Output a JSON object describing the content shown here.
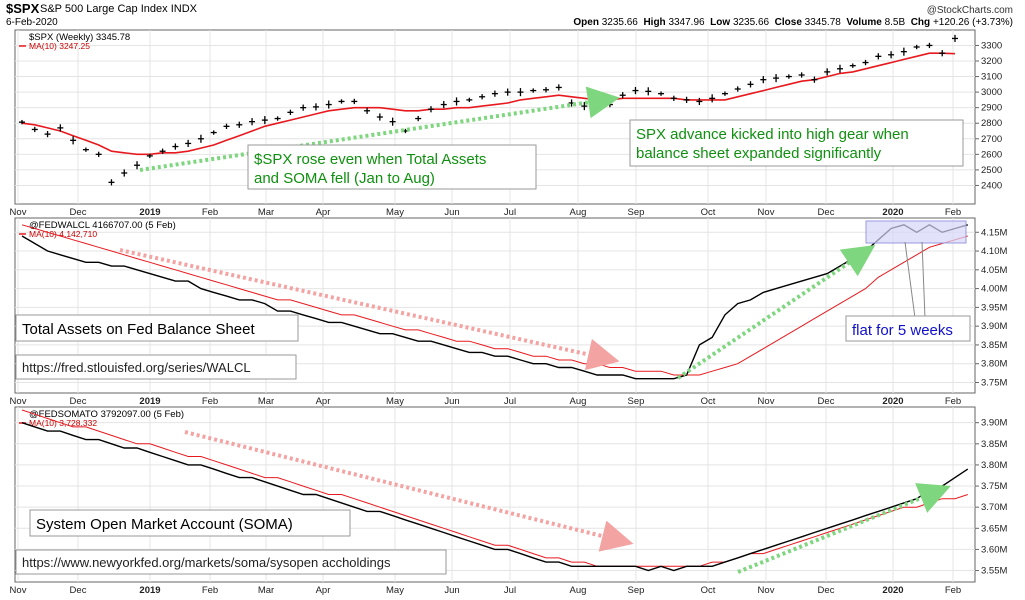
{
  "header": {
    "ticker": "$SPX",
    "name": "S&P 500 Large Cap Index",
    "exchange": "INDX",
    "date": "6-Feb-2020",
    "brand": "@StockCharts.com",
    "quote": [
      {
        "label": "Open",
        "value": "3235.66"
      },
      {
        "label": "High",
        "value": "3347.96"
      },
      {
        "label": "Low",
        "value": "3235.66"
      },
      {
        "label": "Close",
        "value": "3345.78"
      },
      {
        "label": "Volume",
        "value": "8.5B"
      },
      {
        "label": "Chg",
        "value": "+120.26 (+3.73%)"
      }
    ]
  },
  "colors": {
    "price": "#000000",
    "ma": "#e8191e",
    "ma_label": "#cc0000",
    "annotation_green": "#109010",
    "annotation_blue": "#1010cc",
    "arrow_green": "#7ed67e",
    "arrow_red": "#f4a3a3",
    "highlight": "#d6d6f8"
  },
  "x_axis": {
    "labels": [
      "Nov",
      "Dec",
      "2019",
      "Feb",
      "Mar",
      "Apr",
      "May",
      "Jun",
      "Jul",
      "Aug",
      "Sep",
      "Oct",
      "Nov",
      "Dec",
      "2020",
      "Feb"
    ],
    "bold": [
      "2019",
      "2020"
    ]
  },
  "chart_data": [
    {
      "type": "line",
      "panel": "price",
      "series_label": "$SPX (Weekly) 3345.78",
      "ma_label": "MA(10) 3247.25",
      "ylim": [
        2300,
        3380
      ],
      "yticks": [
        2400,
        2500,
        2600,
        2700,
        2800,
        2900,
        3000,
        3100,
        3200,
        3300
      ],
      "bar_style": "HLC",
      "series": [
        {
          "name": "$SPX (Weekly)",
          "values": [
            2807,
            2760,
            2730,
            2770,
            2690,
            2630,
            2600,
            2420,
            2480,
            2530,
            2590,
            2620,
            2650,
            2670,
            2700,
            2740,
            2780,
            2790,
            2810,
            2820,
            2830,
            2870,
            2900,
            2905,
            2920,
            2940,
            2940,
            2880,
            2840,
            2810,
            2750,
            2830,
            2890,
            2920,
            2940,
            2950,
            2970,
            2990,
            3000,
            3000,
            3010,
            3015,
            3030,
            2930,
            2910,
            2880,
            2920,
            2980,
            3010,
            3005,
            2990,
            2960,
            2950,
            2940,
            2960,
            2990,
            3020,
            3050,
            3080,
            3090,
            3100,
            3110,
            3080,
            3130,
            3150,
            3170,
            3190,
            3230,
            3240,
            3260,
            3290,
            3300,
            3250,
            3345
          ]
        },
        {
          "name": "MA(10)",
          "values": [
            2800,
            2790,
            2770,
            2750,
            2720,
            2690,
            2660,
            2620,
            2610,
            2600,
            2600,
            2610,
            2610,
            2620,
            2640,
            2660,
            2690,
            2720,
            2750,
            2780,
            2800,
            2820,
            2840,
            2860,
            2880,
            2890,
            2900,
            2900,
            2900,
            2890,
            2880,
            2880,
            2890,
            2890,
            2900,
            2900,
            2910,
            2920,
            2930,
            2950,
            2960,
            2970,
            2980,
            2970,
            2960,
            2950,
            2950,
            2960,
            2960,
            2960,
            2960,
            2960,
            2950,
            2950,
            2950,
            2950,
            2970,
            2990,
            3010,
            3030,
            3050,
            3070,
            3080,
            3100,
            3120,
            3130,
            3150,
            3170,
            3190,
            3210,
            3230,
            3250,
            3250,
            3247
          ]
        }
      ]
    },
    {
      "type": "line",
      "panel": "walcl",
      "series_label": "@FEDWALCL 4166707.00 (5 Feb)",
      "ma_label": "MA(10) 4,142,710",
      "ylim": [
        3.73,
        4.18
      ],
      "yticks": [
        3.75,
        3.8,
        3.85,
        3.9,
        3.95,
        4.0,
        4.05,
        4.1,
        4.15
      ],
      "ytick_suffix": "M",
      "series": [
        {
          "name": "@FEDWALCL",
          "values": [
            4.14,
            4.12,
            4.1,
            4.09,
            4.08,
            4.07,
            4.07,
            4.06,
            4.06,
            4.05,
            4.04,
            4.03,
            4.02,
            4.02,
            4.0,
            3.99,
            3.98,
            3.97,
            3.97,
            3.96,
            3.94,
            3.94,
            3.93,
            3.92,
            3.91,
            3.91,
            3.9,
            3.89,
            3.88,
            3.88,
            3.87,
            3.86,
            3.86,
            3.85,
            3.84,
            3.83,
            3.83,
            3.82,
            3.82,
            3.81,
            3.8,
            3.8,
            3.79,
            3.79,
            3.78,
            3.77,
            3.77,
            3.77,
            3.76,
            3.76,
            3.76,
            3.76,
            3.77,
            3.85,
            3.87,
            3.93,
            3.96,
            3.97,
            3.99,
            4.0,
            4.01,
            4.02,
            4.03,
            4.04,
            4.06,
            4.08,
            4.1,
            4.13,
            4.16,
            4.17,
            4.15,
            4.17,
            4.15,
            4.16,
            4.17
          ]
        },
        {
          "name": "MA(10)",
          "values": [
            4.17,
            4.16,
            4.15,
            4.14,
            4.13,
            4.12,
            4.11,
            4.1,
            4.09,
            4.08,
            4.07,
            4.06,
            4.05,
            4.04,
            4.03,
            4.02,
            4.01,
            4.0,
            3.99,
            3.98,
            3.97,
            3.97,
            3.96,
            3.95,
            3.94,
            3.93,
            3.93,
            3.92,
            3.91,
            3.9,
            3.89,
            3.89,
            3.88,
            3.87,
            3.86,
            3.86,
            3.85,
            3.84,
            3.84,
            3.83,
            3.82,
            3.82,
            3.81,
            3.81,
            3.8,
            3.8,
            3.79,
            3.79,
            3.78,
            3.78,
            3.78,
            3.77,
            3.77,
            3.77,
            3.78,
            3.79,
            3.8,
            3.82,
            3.84,
            3.86,
            3.88,
            3.9,
            3.92,
            3.94,
            3.96,
            3.98,
            4.0,
            4.03,
            4.05,
            4.07,
            4.09,
            4.11,
            4.12,
            4.13,
            4.14
          ]
        }
      ]
    },
    {
      "type": "line",
      "panel": "soma",
      "series_label": "@FEDSOMATO 3792097.00 (5 Feb)",
      "ma_label": "MA(10) 3,728,332",
      "ylim": [
        3.53,
        3.93
      ],
      "yticks": [
        3.55,
        3.6,
        3.65,
        3.7,
        3.75,
        3.8,
        3.85,
        3.9
      ],
      "ytick_suffix": "M",
      "series": [
        {
          "name": "@FEDSOMATO",
          "values": [
            3.9,
            3.89,
            3.88,
            3.88,
            3.87,
            3.86,
            3.86,
            3.85,
            3.84,
            3.84,
            3.83,
            3.82,
            3.81,
            3.8,
            3.8,
            3.79,
            3.78,
            3.77,
            3.77,
            3.76,
            3.75,
            3.74,
            3.73,
            3.73,
            3.72,
            3.71,
            3.7,
            3.69,
            3.69,
            3.68,
            3.67,
            3.66,
            3.65,
            3.64,
            3.63,
            3.62,
            3.61,
            3.6,
            3.6,
            3.59,
            3.58,
            3.57,
            3.57,
            3.56,
            3.56,
            3.56,
            3.56,
            3.56,
            3.56,
            3.55,
            3.56,
            3.55,
            3.56,
            3.56,
            3.56,
            3.57,
            3.58,
            3.59,
            3.6,
            3.61,
            3.62,
            3.63,
            3.64,
            3.65,
            3.66,
            3.67,
            3.68,
            3.69,
            3.7,
            3.71,
            3.72,
            3.74,
            3.75,
            3.77,
            3.79
          ]
        },
        {
          "name": "MA(10)",
          "values": [
            3.93,
            3.92,
            3.91,
            3.9,
            3.89,
            3.89,
            3.88,
            3.87,
            3.86,
            3.85,
            3.85,
            3.84,
            3.83,
            3.82,
            3.82,
            3.81,
            3.8,
            3.79,
            3.78,
            3.77,
            3.77,
            3.76,
            3.75,
            3.74,
            3.73,
            3.73,
            3.72,
            3.71,
            3.7,
            3.69,
            3.68,
            3.67,
            3.66,
            3.65,
            3.64,
            3.63,
            3.62,
            3.61,
            3.61,
            3.6,
            3.59,
            3.58,
            3.58,
            3.57,
            3.57,
            3.56,
            3.56,
            3.56,
            3.56,
            3.56,
            3.56,
            3.56,
            3.56,
            3.56,
            3.57,
            3.57,
            3.58,
            3.59,
            3.59,
            3.6,
            3.61,
            3.62,
            3.63,
            3.64,
            3.65,
            3.66,
            3.67,
            3.68,
            3.69,
            3.7,
            3.7,
            3.71,
            3.72,
            3.72,
            3.73
          ]
        }
      ]
    }
  ],
  "annotations": {
    "spx_note_1": "$SPX rose even when Total Assets",
    "spx_note_2": "and SOMA fell (Jan to Aug)",
    "spx_high_1": "SPX advance kicked into high gear when",
    "spx_high_2": "balance sheet expanded significantly",
    "walcl_title": "Total Assets on Fed Balance Sheet",
    "walcl_url": "https://fred.stlouisfed.org/series/WALCL",
    "flat_note": "flat for 5 weeks",
    "soma_title": "System Open Market Account (SOMA)",
    "soma_url": "https://www.newyorkfed.org/markets/soma/sysopen accholdings"
  }
}
